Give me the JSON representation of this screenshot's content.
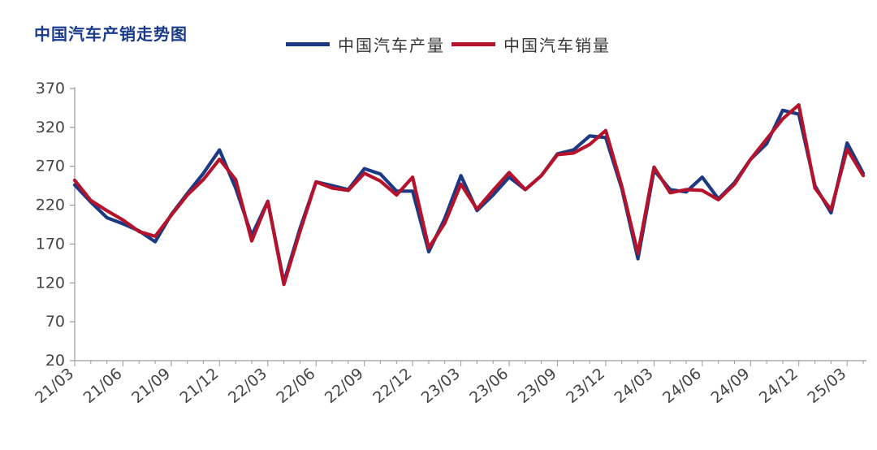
{
  "chart_data": {
    "type": "line",
    "title": "中国汽车产销走势图",
    "xlabel": "",
    "ylabel": "",
    "ylim": [
      20,
      370
    ],
    "yticks": [
      370,
      320,
      270,
      220,
      170,
      120,
      70,
      20
    ],
    "grid": false,
    "legend_position": "top",
    "x": [
      "21/03",
      "21/04",
      "21/05",
      "21/06",
      "21/07",
      "21/08",
      "21/09",
      "21/10",
      "21/11",
      "21/12",
      "22/01",
      "22/02",
      "22/03",
      "22/04",
      "22/05",
      "22/06",
      "22/07",
      "22/08",
      "22/09",
      "22/10",
      "22/11",
      "22/12",
      "23/01",
      "23/02",
      "23/03",
      "23/04",
      "23/05",
      "23/06",
      "23/07",
      "23/08",
      "23/09",
      "23/10",
      "23/11",
      "23/12",
      "24/01",
      "24/02",
      "24/03",
      "24/04",
      "24/05",
      "24/06",
      "24/07",
      "24/08",
      "24/09",
      "24/10",
      "24/11",
      "24/12",
      "25/01",
      "25/02",
      "25/03",
      "25/04"
    ],
    "xtick_labels": [
      "21/03",
      "21/06",
      "21/09",
      "21/12",
      "22/03",
      "22/06",
      "22/09",
      "22/12",
      "23/03",
      "23/06",
      "23/09",
      "23/12",
      "24/03",
      "24/06",
      "24/09",
      "24/12",
      "25/03"
    ],
    "series": [
      {
        "name": "中国汽车产量",
        "color": "#1b3a83",
        "values": [
          246,
          224,
          204,
          196,
          187,
          173,
          208,
          235,
          261,
          291,
          242,
          181,
          225,
          121,
          190,
          250,
          245,
          240,
          267,
          260,
          238,
          238,
          160,
          203,
          258,
          213,
          233,
          256,
          240,
          258,
          286,
          291,
          309,
          307,
          241,
          151,
          265,
          240,
          237,
          256,
          228,
          249,
          279,
          299,
          342,
          337,
          245,
          210,
          300,
          261
        ]
      },
      {
        "name": "中国汽车销量",
        "color": "#b5122b",
        "values": [
          252,
          226,
          213,
          201,
          186,
          180,
          207,
          233,
          253,
          279,
          253,
          174,
          225,
          118,
          186,
          250,
          242,
          239,
          261,
          251,
          233,
          256,
          165,
          197,
          247,
          215,
          239,
          262,
          240,
          258,
          285,
          287,
          298,
          316,
          244,
          158,
          269,
          236,
          240,
          239,
          227,
          247,
          279,
          305,
          331,
          349,
          242,
          214,
          292,
          258
        ]
      }
    ]
  }
}
